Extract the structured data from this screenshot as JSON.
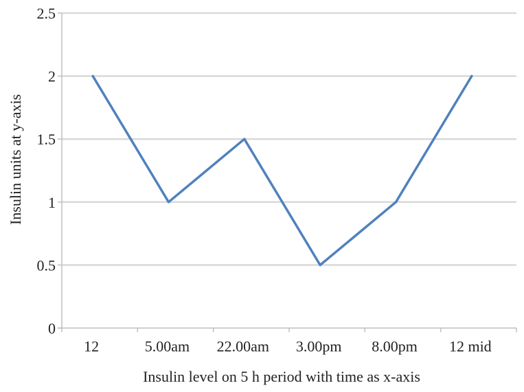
{
  "chart_data": {
    "type": "line",
    "title": "",
    "xlabel": "Insulin level on 5 h period with time as x-axis",
    "ylabel": "Insulin units at y-axis",
    "categories": [
      "12",
      "5.00am",
      "22.00am",
      "3.00pm",
      "8.00pm",
      "12 mid"
    ],
    "series": [
      {
        "values": [
          2,
          1,
          1.5,
          0.5,
          1,
          2
        ]
      }
    ],
    "ylim": [
      0,
      2.5
    ],
    "yticks": [
      "0",
      "0.5",
      "1",
      "1.5",
      "2",
      "2.5"
    ],
    "grid": true,
    "legend": "none",
    "colors": {
      "line": "#4f81bd",
      "grid": "#d9d9d9",
      "axis": "#bfbfbf"
    }
  }
}
